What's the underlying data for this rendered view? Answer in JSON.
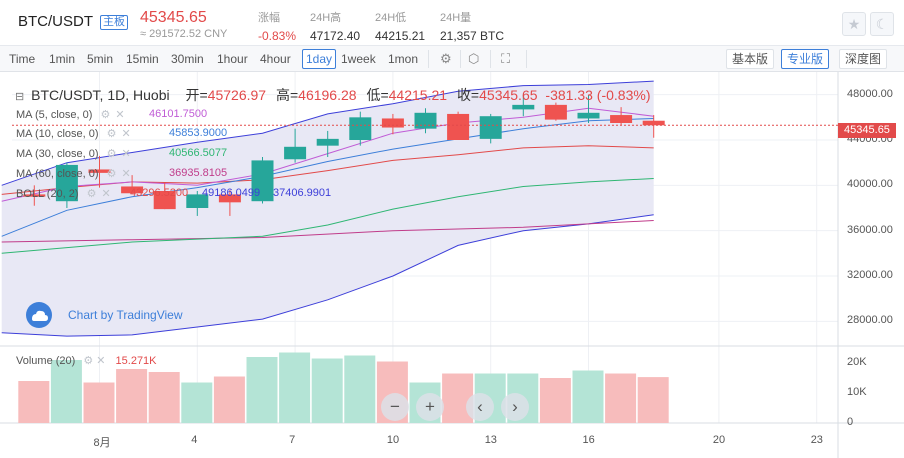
{
  "header": {
    "pair": "BTC/USDT",
    "board_badge": "主板",
    "price": "45345.65",
    "cny_value": "≈ 291572.52 CNY",
    "stats": [
      {
        "label": "涨幅",
        "value": "-0.83%",
        "color": "#e24a4a"
      },
      {
        "label": "24H高",
        "value": "47172.40",
        "color": "#333333"
      },
      {
        "label": "24H低",
        "value": "44215.21",
        "color": "#333333"
      },
      {
        "label": "24H量",
        "value": "21,357 BTC",
        "color": "#333333"
      }
    ],
    "icons": [
      "star-icon",
      "moon-icon"
    ]
  },
  "toolbar": {
    "intervals": [
      "Time",
      "1min",
      "5min",
      "15min",
      "30min",
      "1hour",
      "4hour",
      "1day",
      "1week",
      "1mon"
    ],
    "active_interval": "1day",
    "tool_icons": [
      "settings-icon",
      "indicators-icon",
      "fullscreen-icon"
    ],
    "views": [
      "基本版",
      "专业版",
      "深度图"
    ],
    "active_view": "专业版"
  },
  "chart": {
    "legend": {
      "title": "BTC/USDT, 1D, Huobi",
      "open_label": "开=",
      "open": "45726.97",
      "high_label": "高=",
      "high": "46196.28",
      "low_label": "低=",
      "low": "44215.21",
      "close_label": "收=",
      "close": "45345.65",
      "change": "-381.33 (-0.83%)"
    },
    "indicators": [
      {
        "name": "MA (5, close, 0)",
        "value": "46101.7500",
        "color": "#c05cd6"
      },
      {
        "name": "MA (10, close, 0)",
        "value": "45853.9000",
        "color": "#3d7fd9"
      },
      {
        "name": "MA (30, close, 0)",
        "value": "40566.5077",
        "color": "#2fb673"
      },
      {
        "name": "MA (60, close, 0)",
        "value": "36935.8105",
        "color": "#c03c8a"
      },
      {
        "name": "BOLL (20, 2)",
        "values": [
          "43296.5200",
          "49186.0499",
          "37406.9901"
        ],
        "colors": [
          "#e24a4a",
          "#3d3fd9",
          "#3d3fd9"
        ]
      }
    ],
    "watermark": "Chart by TradingView",
    "volume_label": "Volume (20)",
    "volume_value": "15.271K",
    "last_price_tag": "45345.65",
    "nav_buttons": [
      "−",
      "+",
      "‹",
      "›"
    ],
    "colors": {
      "up": "#26a69a",
      "down": "#ef5350",
      "up_vol": "#b4e4d6",
      "down_vol": "#f7bcbc",
      "boll_fill": "#e8e8f5",
      "boll_band": "#3d3fd9"
    },
    "y_ticks": [
      {
        "label": "48000.00",
        "value": 48000
      },
      {
        "label": "44000.00",
        "value": 44000
      },
      {
        "label": "40000.00",
        "value": 40000
      },
      {
        "label": "36000.00",
        "value": 36000
      },
      {
        "label": "32000.00",
        "value": 32000
      },
      {
        "label": "28000.00",
        "value": 28000
      }
    ],
    "vol_ticks": [
      {
        "label": "20K",
        "value": 20000
      },
      {
        "label": "10K",
        "value": 10000
      },
      {
        "label": "0",
        "value": 0
      }
    ],
    "x_ticks": [
      {
        "label": "8月",
        "day": 1
      },
      {
        "label": "4",
        "day": 4
      },
      {
        "label": "7",
        "day": 7
      },
      {
        "label": "10",
        "day": 10
      },
      {
        "label": "13",
        "day": 13
      },
      {
        "label": "16",
        "day": 16
      },
      {
        "label": "20",
        "day": 20
      },
      {
        "label": "23",
        "day": 23
      }
    ]
  },
  "chart_data": {
    "type": "candlestick",
    "price_range": [
      26000,
      50000
    ],
    "volume_range": [
      0,
      25000
    ],
    "candles": [
      {
        "day": -1,
        "open": 39200,
        "high": 40000,
        "low": 38200,
        "close": 39000,
        "volume": 14000
      },
      {
        "day": 0,
        "open": 38600,
        "high": 42000,
        "low": 38000,
        "close": 41800,
        "volume": 21000
      },
      {
        "day": 1,
        "open": 41400,
        "high": 42600,
        "low": 39800,
        "close": 41100,
        "volume": 13500
      },
      {
        "day": 2,
        "open": 39900,
        "high": 40900,
        "low": 39200,
        "close": 39300,
        "volume": 18000
      },
      {
        "day": 3,
        "open": 39500,
        "high": 40200,
        "low": 37900,
        "close": 37900,
        "volume": 17000
      },
      {
        "day": 4,
        "open": 38000,
        "high": 39500,
        "low": 37300,
        "close": 39200,
        "volume": 13500
      },
      {
        "day": 5,
        "open": 39200,
        "high": 39600,
        "low": 37300,
        "close": 38500,
        "volume": 15500
      },
      {
        "day": 6,
        "open": 38600,
        "high": 42500,
        "low": 38400,
        "close": 42200,
        "volume": 22000
      },
      {
        "day": 7,
        "open": 42300,
        "high": 45000,
        "low": 42000,
        "close": 43400,
        "volume": 23500
      },
      {
        "day": 8,
        "open": 43500,
        "high": 44800,
        "low": 42500,
        "close": 44100,
        "volume": 21500
      },
      {
        "day": 9,
        "open": 44000,
        "high": 46500,
        "low": 43500,
        "close": 46000,
        "volume": 22500
      },
      {
        "day": 10,
        "open": 45900,
        "high": 46300,
        "low": 44500,
        "close": 45100,
        "volume": 20500
      },
      {
        "day": 11,
        "open": 45000,
        "high": 46800,
        "low": 44600,
        "close": 46400,
        "volume": 13500
      },
      {
        "day": 12,
        "open": 46300,
        "high": 46500,
        "low": 44000,
        "close": 44000,
        "volume": 16500
      },
      {
        "day": 13,
        "open": 44100,
        "high": 46300,
        "low": 43700,
        "close": 46100,
        "volume": 16500
      },
      {
        "day": 14,
        "open": 46700,
        "high": 48000,
        "low": 46100,
        "close": 47100,
        "volume": 16500
      },
      {
        "day": 15,
        "open": 47100,
        "high": 47300,
        "low": 45700,
        "close": 45800,
        "volume": 15000
      },
      {
        "day": 16,
        "open": 45900,
        "high": 48000,
        "low": 45500,
        "close": 46400,
        "volume": 17500
      },
      {
        "day": 17,
        "open": 46200,
        "high": 46900,
        "low": 45300,
        "close": 45500,
        "volume": 16500
      },
      {
        "day": 18,
        "open": 45700,
        "high": 46200,
        "low": 44200,
        "close": 45300,
        "volume": 15300
      }
    ],
    "ma5": [
      [
        -2,
        38600
      ],
      [
        0,
        39900
      ],
      [
        2,
        40300
      ],
      [
        4,
        40000
      ],
      [
        6,
        41000
      ],
      [
        8,
        42800
      ],
      [
        10,
        44600
      ],
      [
        12,
        45500
      ],
      [
        14,
        46000
      ],
      [
        16,
        46800
      ],
      [
        18,
        46100
      ]
    ],
    "ma10": [
      [
        -2,
        35500
      ],
      [
        0,
        37800
      ],
      [
        2,
        39000
      ],
      [
        4,
        39800
      ],
      [
        6,
        40800
      ],
      [
        8,
        42100
      ],
      [
        10,
        43200
      ],
      [
        12,
        44100
      ],
      [
        14,
        45000
      ],
      [
        16,
        45700
      ],
      [
        18,
        45900
      ]
    ],
    "ma30": [
      [
        -2,
        34000
      ],
      [
        2,
        35000
      ],
      [
        6,
        35500
      ],
      [
        8,
        36500
      ],
      [
        10,
        37900
      ],
      [
        12,
        39000
      ],
      [
        14,
        39900
      ],
      [
        16,
        40300
      ],
      [
        18,
        40600
      ]
    ],
    "ma60": [
      [
        -2,
        35000
      ],
      [
        2,
        35200
      ],
      [
        6,
        35400
      ],
      [
        10,
        36000
      ],
      [
        14,
        36300
      ],
      [
        18,
        36900
      ]
    ],
    "boll_upper": [
      [
        -2,
        40000
      ],
      [
        0,
        42000
      ],
      [
        2,
        42900
      ],
      [
        4,
        43800
      ],
      [
        6,
        44600
      ],
      [
        8,
        46300
      ],
      [
        10,
        47200
      ],
      [
        12,
        48300
      ],
      [
        14,
        48800
      ],
      [
        16,
        48900
      ],
      [
        18,
        49200
      ]
    ],
    "boll_middle": [
      [
        -2,
        39200
      ],
      [
        0,
        39800
      ],
      [
        2,
        40300
      ],
      [
        4,
        40200
      ],
      [
        6,
        40500
      ],
      [
        8,
        41300
      ],
      [
        10,
        42200
      ],
      [
        12,
        42700
      ],
      [
        14,
        43300
      ],
      [
        16,
        43500
      ],
      [
        18,
        43300
      ]
    ],
    "boll_lower": [
      [
        -2,
        27000
      ],
      [
        0,
        26700
      ],
      [
        2,
        26800
      ],
      [
        4,
        27500
      ],
      [
        6,
        28200
      ],
      [
        8,
        29900
      ],
      [
        10,
        32000
      ],
      [
        12,
        34700
      ],
      [
        14,
        36000
      ],
      [
        16,
        36600
      ],
      [
        18,
        37400
      ]
    ]
  }
}
